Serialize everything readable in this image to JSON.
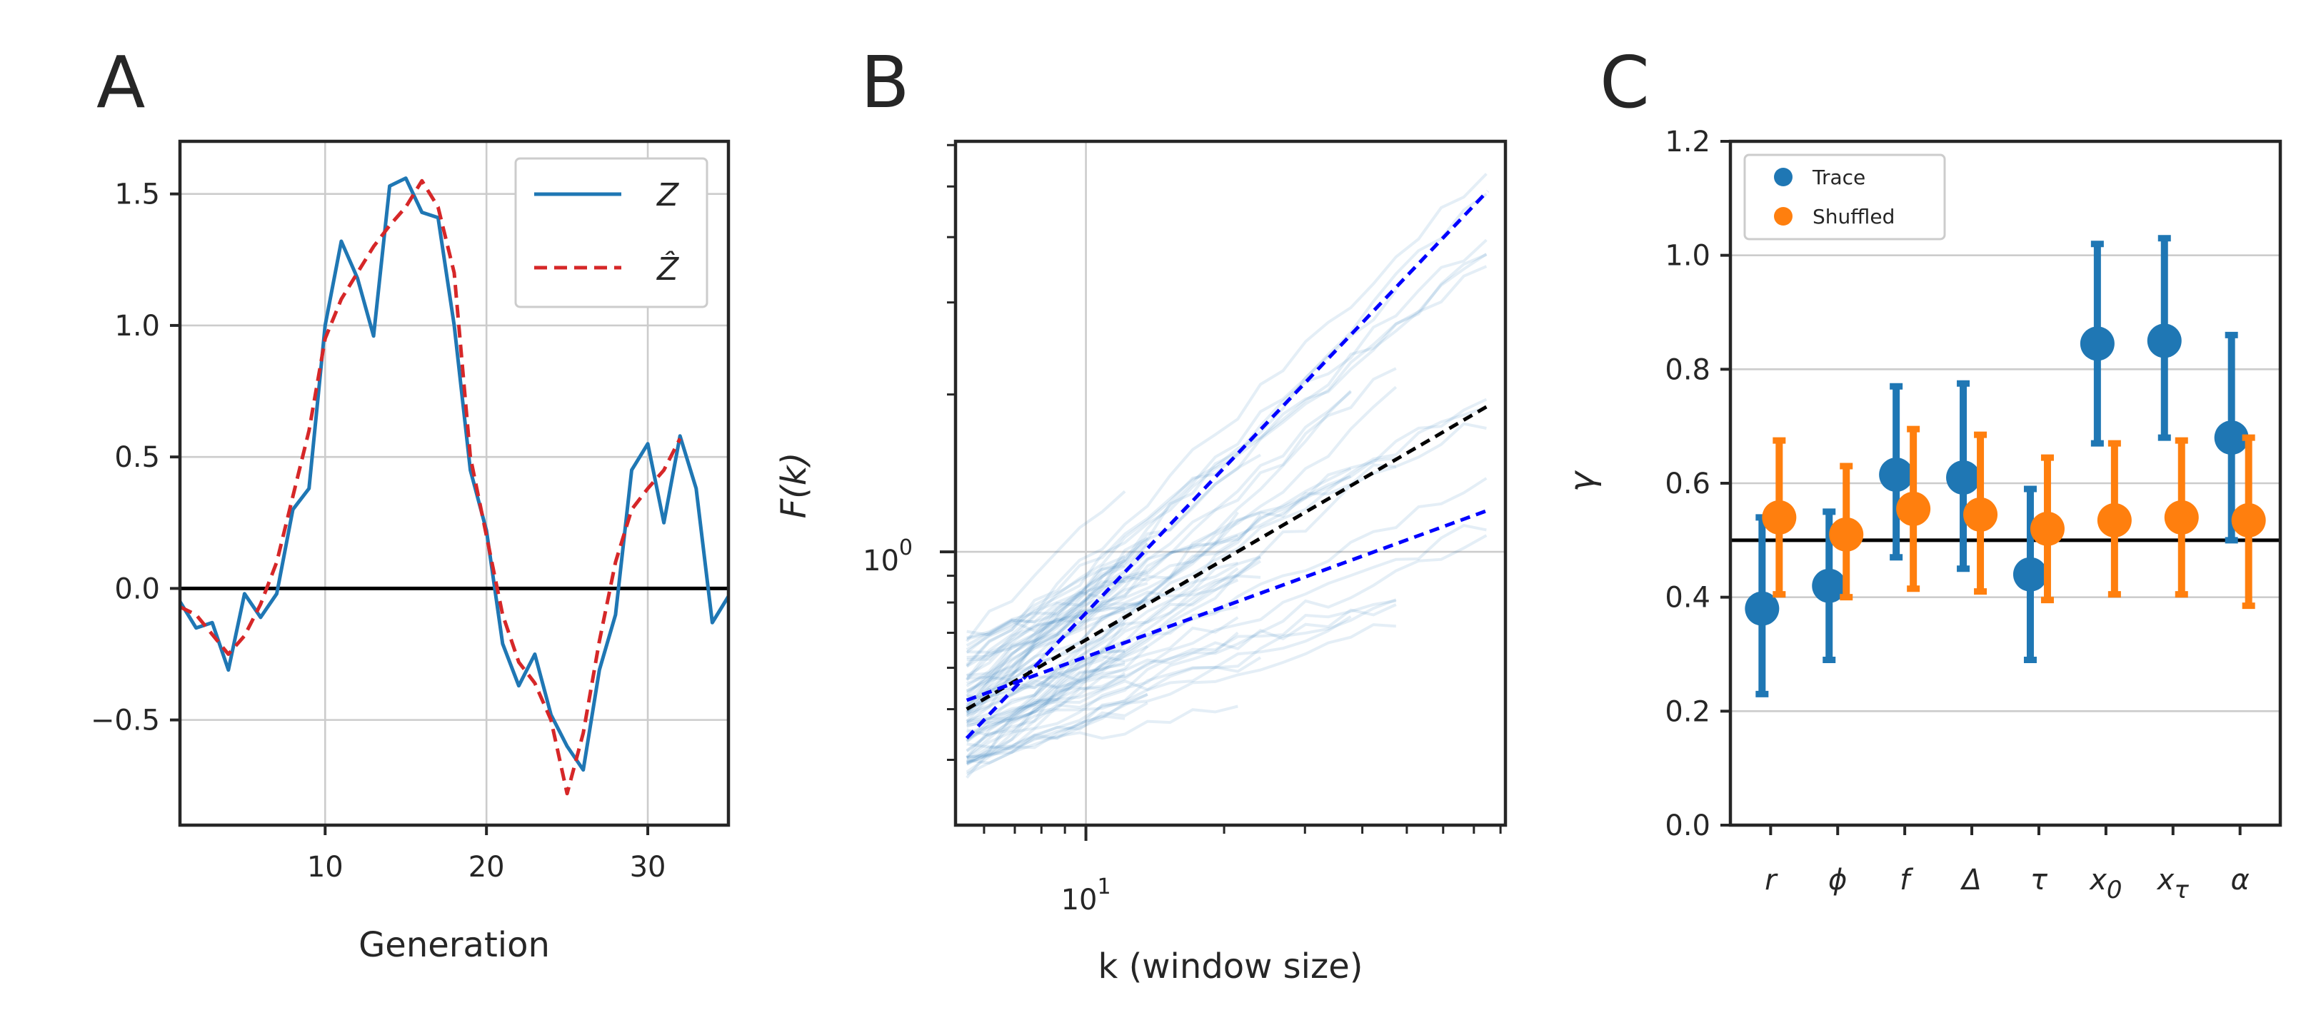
{
  "panels": [
    {
      "label": "A"
    },
    {
      "label": "B"
    },
    {
      "label": "C"
    }
  ],
  "chart_data": [
    {
      "type": "line",
      "panel": "A",
      "xlabel": "Generation",
      "ylabel": "",
      "xlim": [
        1,
        35
      ],
      "ylim": [
        -0.9,
        1.7
      ],
      "xticks": [
        10,
        20,
        30
      ],
      "xtick_labels": [
        "10",
        "20",
        "30"
      ],
      "yticks": [
        -0.5,
        0.0,
        0.5,
        1.0,
        1.5
      ],
      "ytick_labels": [
        "−0.5",
        "0.0",
        "0.5",
        "1.0",
        "1.5"
      ],
      "grid": true,
      "legend_position": "top-right",
      "reference_line": {
        "y": 0.0,
        "color": "#000000"
      },
      "series": [
        {
          "name": "Z",
          "color": "#1f77b4",
          "style": "solid",
          "x": [
            1,
            2,
            3,
            4,
            5,
            6,
            7,
            8,
            9,
            10,
            11,
            12,
            13,
            14,
            15,
            16,
            17,
            18,
            19,
            20,
            21,
            22,
            23,
            24,
            25,
            26,
            27,
            28,
            29,
            30,
            31,
            32,
            33,
            34,
            35
          ],
          "y": [
            -0.05,
            -0.15,
            -0.13,
            -0.31,
            -0.02,
            -0.11,
            -0.02,
            0.3,
            0.38,
            1.0,
            1.32,
            1.18,
            0.96,
            1.53,
            1.56,
            1.43,
            1.41,
            1.0,
            0.45,
            0.22,
            -0.21,
            -0.37,
            -0.25,
            -0.48,
            -0.6,
            -0.69,
            -0.31,
            -0.1,
            0.45,
            0.55,
            0.25,
            0.58,
            0.38,
            -0.13,
            -0.03
          ]
        },
        {
          "name": "Ẑ",
          "color": "#d62728",
          "style": "dashed",
          "x": [
            1,
            2,
            4,
            5,
            6,
            7,
            8,
            9,
            10,
            11,
            12,
            13,
            14,
            15,
            16,
            17,
            18,
            19,
            20,
            21,
            22,
            23,
            24,
            25,
            26,
            27,
            28,
            29,
            30,
            31,
            32
          ],
          "y": [
            -0.07,
            -0.1,
            -0.25,
            -0.18,
            -0.06,
            0.1,
            0.35,
            0.6,
            0.95,
            1.1,
            1.2,
            1.3,
            1.38,
            1.45,
            1.55,
            1.45,
            1.2,
            0.5,
            0.2,
            -0.1,
            -0.28,
            -0.36,
            -0.5,
            -0.78,
            -0.55,
            -0.2,
            0.1,
            0.3,
            0.38,
            0.45,
            0.57
          ]
        }
      ]
    },
    {
      "type": "line",
      "panel": "B",
      "xlabel": "k (window size)",
      "ylabel": "F(k)",
      "xscale": "log",
      "yscale": "log",
      "xlim": [
        5.2,
        82
      ],
      "ylim": [
        0.3,
        6.1
      ],
      "xticks": [
        10
      ],
      "xtick_labels": [
        "10^1"
      ],
      "yticks": [
        1
      ],
      "ytick_labels": [
        "10^0"
      ],
      "grid": true,
      "series": [
        {
          "name": "",
          "color": "#0000ff",
          "style": "dashed",
          "x": [
            5.5,
            75
          ],
          "y": [
            0.44,
            4.9
          ]
        },
        {
          "name": "",
          "color": "#000000",
          "style": "dashed",
          "x": [
            5.5,
            75
          ],
          "y": [
            0.5,
            1.9
          ]
        },
        {
          "name": "",
          "color": "#0000ff",
          "style": "dashed",
          "x": [
            5.5,
            75
          ],
          "y": [
            0.52,
            1.2
          ]
        }
      ]
    },
    {
      "type": "scatter",
      "panel": "C",
      "xlabel": "",
      "ylabel": "γ",
      "ylim": [
        0.0,
        1.2
      ],
      "yticks": [
        0.0,
        0.2,
        0.4,
        0.6,
        0.8,
        1.0,
        1.2
      ],
      "ytick_labels": [
        "0.0",
        "0.2",
        "0.4",
        "0.6",
        "0.8",
        "1.0",
        "1.2"
      ],
      "categories": [
        "r",
        "ϕ",
        "f",
        "Δ",
        "τ",
        "x0",
        "xτ",
        "α"
      ],
      "grid": true,
      "legend_position": "top-left",
      "reference_line": {
        "y": 0.5,
        "color": "#000000"
      },
      "series": [
        {
          "name": "Trace",
          "color": "#1f77b4",
          "values": [
            0.38,
            0.42,
            0.615,
            0.61,
            0.44,
            0.845,
            0.85,
            0.68
          ],
          "err_low": [
            0.23,
            0.29,
            0.47,
            0.45,
            0.29,
            0.67,
            0.68,
            0.5
          ],
          "err_high": [
            0.54,
            0.55,
            0.77,
            0.775,
            0.59,
            1.02,
            1.03,
            0.86
          ]
        },
        {
          "name": "Shuffled",
          "color": "#ff7f0e",
          "values": [
            0.54,
            0.51,
            0.555,
            0.545,
            0.52,
            0.535,
            0.54,
            0.535
          ],
          "err_low": [
            0.405,
            0.4,
            0.415,
            0.41,
            0.395,
            0.405,
            0.405,
            0.385
          ],
          "err_high": [
            0.675,
            0.63,
            0.695,
            0.685,
            0.645,
            0.67,
            0.675,
            0.68
          ]
        }
      ]
    }
  ]
}
